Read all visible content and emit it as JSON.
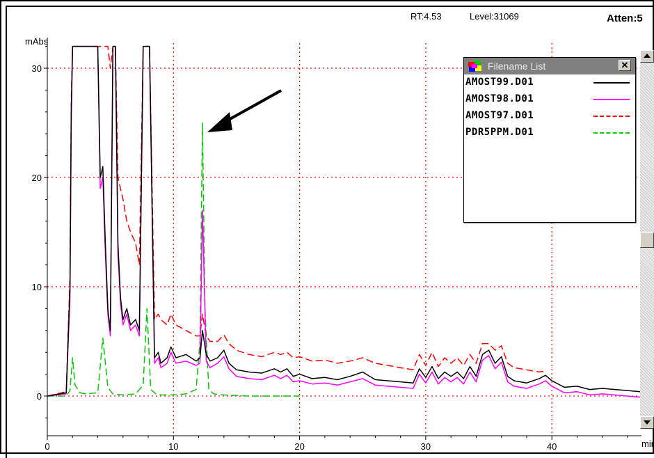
{
  "header": {
    "rt": "RT:4.53",
    "level": "Level:31069",
    "atten": "Atten:5"
  },
  "legend": {
    "title": "Filename List",
    "close_label": "✕",
    "items": [
      {
        "name": "AMOST99.D01",
        "color": "#000000",
        "dash": "solid"
      },
      {
        "name": "AMOST98.D01",
        "color": "#ff00ff",
        "dash": "solid"
      },
      {
        "name": "AMOST97.D01",
        "color": "#ff0000",
        "dash": "dashed"
      },
      {
        "name": "PDR5PPM.D01",
        "color": "#00cc00",
        "dash": "dashed"
      }
    ]
  },
  "chart_data": {
    "type": "line",
    "title": "",
    "xlabel": "min",
    "ylabel": "mAbs",
    "xlim": [
      0,
      47
    ],
    "ylim": [
      -3,
      32
    ],
    "x_ticks": [
      0,
      10,
      20,
      30,
      40
    ],
    "y_ticks": [
      0,
      10,
      20,
      30
    ],
    "grid": true,
    "grid_style": "red dotted",
    "legend_position": "top-right",
    "annotation": "arrow pointing to peak at x≈12.3",
    "series": [
      {
        "name": "AMOST99.D01",
        "color": "#000000",
        "dash": "solid",
        "x": [
          0,
          1.5,
          1.8,
          1.9,
          2.0,
          2.05,
          3.5,
          4.0,
          4.2,
          4.4,
          4.6,
          4.8,
          5.0,
          5.2,
          5.4,
          5.6,
          5.8,
          6.0,
          6.3,
          6.6,
          7.0,
          7.3,
          7.6,
          7.8,
          8.0,
          8.1,
          8.5,
          8.8,
          9.0,
          9.5,
          9.8,
          10.2,
          11.0,
          11.8,
          12.1,
          12.3,
          12.6,
          12.9,
          13.5,
          14.0,
          14.4,
          15.0,
          16.0,
          17.0,
          18.0,
          18.5,
          19.0,
          19.5,
          20.0,
          21.0,
          22.0,
          23.0,
          24.0,
          25.0,
          26.0,
          27.0,
          28.0,
          29.0,
          29.5,
          30.0,
          30.5,
          31.0,
          31.5,
          32.0,
          32.5,
          33.0,
          33.5,
          34.0,
          34.5,
          35.0,
          35.5,
          36.0,
          36.5,
          37.0,
          38.0,
          39.0,
          39.5,
          40.0,
          41.0,
          42.0,
          43.0,
          44.0,
          45.0,
          46.0,
          47.0
        ],
        "y": [
          0,
          0.3,
          10,
          26,
          32,
          32,
          32,
          32,
          20,
          21,
          14,
          8,
          6,
          32,
          32,
          14,
          9,
          7,
          8,
          6.5,
          7,
          6,
          32,
          32,
          32,
          32,
          3.5,
          4,
          3,
          3.5,
          4.5,
          3.5,
          3.8,
          3.2,
          3.5,
          6,
          3.8,
          3.2,
          3.5,
          4.2,
          3.0,
          2.4,
          2.2,
          2.1,
          2.5,
          2.2,
          2.5,
          1.8,
          2.0,
          1.6,
          1.7,
          1.5,
          1.8,
          2.2,
          1.5,
          1.4,
          1.3,
          1.2,
          2.5,
          1.7,
          2.7,
          1.6,
          2.2,
          1.8,
          2.2,
          1.6,
          2.7,
          1.8,
          3.8,
          4.2,
          3.0,
          3.6,
          1.8,
          1.4,
          1.2,
          1.6,
          1.9,
          1.4,
          0.8,
          0.9,
          0.6,
          0.7,
          0.6,
          0.5,
          0.4
        ]
      },
      {
        "name": "AMOST98.D01",
        "color": "#ff00ff",
        "dash": "solid",
        "x": [
          0,
          1.5,
          1.8,
          1.9,
          2.0,
          2.05,
          3.5,
          4.0,
          4.2,
          4.4,
          4.6,
          4.8,
          5.0,
          5.2,
          5.4,
          5.6,
          5.8,
          6.0,
          6.3,
          6.6,
          7.0,
          7.3,
          7.6,
          7.8,
          8.0,
          8.1,
          8.5,
          8.8,
          9.0,
          9.5,
          9.8,
          10.2,
          11.0,
          11.8,
          12.1,
          12.3,
          12.6,
          12.9,
          13.5,
          14.0,
          14.4,
          15.0,
          16.0,
          17.0,
          18.0,
          18.5,
          19.0,
          19.5,
          20.0,
          21.0,
          22.0,
          23.0,
          24.0,
          25.0,
          26.0,
          27.0,
          28.0,
          29.0,
          29.5,
          30.0,
          30.5,
          31.0,
          31.5,
          32.0,
          32.5,
          33.0,
          33.5,
          34.0,
          34.5,
          35.0,
          35.5,
          36.0,
          36.5,
          37.0,
          38.0,
          39.0,
          39.5,
          40.0,
          41.0,
          42.0,
          43.0,
          44.0,
          45.0,
          46.0,
          47.0
        ],
        "y": [
          0,
          0.2,
          9,
          25,
          32,
          32,
          32,
          32,
          19,
          20,
          13,
          7.5,
          5.5,
          32,
          32,
          13,
          8.5,
          6.5,
          7.5,
          6,
          6.5,
          5.5,
          32,
          32,
          32,
          32,
          3.0,
          3.5,
          2.6,
          3.0,
          4.0,
          3.0,
          3.2,
          2.8,
          3.0,
          17,
          3.2,
          2.6,
          3.0,
          3.6,
          2.5,
          1.8,
          1.6,
          1.5,
          1.9,
          1.6,
          1.9,
          1.3,
          1.4,
          1.1,
          1.2,
          1.0,
          1.3,
          1.6,
          1.0,
          0.9,
          0.8,
          0.7,
          2.0,
          1.2,
          2.2,
          1.1,
          1.7,
          1.3,
          1.7,
          1.1,
          2.2,
          1.3,
          3.3,
          3.7,
          2.5,
          3.1,
          1.3,
          0.9,
          0.7,
          1.1,
          1.4,
          0.9,
          0.3,
          0.4,
          0.1,
          0.2,
          0.1,
          0.0,
          -0.1
        ]
      },
      {
        "name": "AMOST97.D01",
        "color": "#ff0000",
        "dash": "dashed",
        "x": [
          0,
          1.5,
          1.8,
          1.9,
          2.0,
          2.05,
          3.5,
          4.0,
          4.4,
          4.8,
          5.0,
          5.2,
          5.4,
          5.6,
          6.0,
          6.3,
          6.6,
          7.0,
          7.3,
          7.6,
          7.8,
          8.0,
          8.1,
          8.5,
          8.8,
          9.0,
          9.5,
          9.8,
          10.2,
          11.0,
          11.8,
          12.1,
          12.3,
          12.6,
          12.9,
          13.5,
          14.0,
          14.4,
          15.0,
          16.0,
          17.0,
          18.0,
          18.5,
          19.0,
          19.5,
          20.0,
          21.0,
          22.0,
          23.0,
          24.0,
          25.0,
          26.0,
          27.0,
          28.0,
          29.0,
          29.5,
          30.0,
          30.5,
          31.0,
          31.5,
          32.0,
          32.5,
          33.0,
          33.5,
          34.0,
          34.5,
          35.0,
          35.5,
          36.0,
          36.5,
          37.0,
          38.0,
          39.0,
          39.5
        ],
        "y": [
          0,
          0.4,
          11,
          27,
          32,
          32,
          32,
          32,
          32,
          32,
          30,
          32,
          32,
          20,
          18,
          16,
          15,
          14,
          12,
          32,
          32,
          32,
          32,
          7,
          7.5,
          7,
          6.5,
          7.5,
          6.5,
          6.0,
          5.5,
          5.5,
          7.5,
          5.5,
          5.0,
          5.0,
          5.6,
          4.8,
          4.2,
          3.8,
          3.6,
          4.0,
          3.8,
          4.0,
          3.5,
          3.6,
          3.2,
          3.3,
          3.0,
          3.2,
          3.5,
          3.0,
          2.8,
          2.6,
          2.4,
          3.8,
          2.8,
          4.0,
          2.7,
          3.5,
          3.0,
          3.5,
          2.8,
          3.8,
          3.0,
          4.8,
          4.8,
          4.2,
          4.6,
          3.0,
          2.6,
          2.4,
          2.2,
          2.3
        ]
      },
      {
        "name": "PDR5PPM.D01",
        "color": "#00cc00",
        "dash": "dashed",
        "x": [
          0,
          1.5,
          1.8,
          2.0,
          2.2,
          2.6,
          3.0,
          4.0,
          4.4,
          4.8,
          5.2,
          6.0,
          7.0,
          7.6,
          7.9,
          8.2,
          8.6,
          9.0,
          10.0,
          11.0,
          11.8,
          12.1,
          12.3,
          12.5,
          12.8,
          13.2,
          14.0,
          15.0,
          16.0,
          18.0,
          20.0
        ],
        "y": [
          0,
          0,
          0.5,
          3.5,
          1.0,
          0.3,
          0.2,
          0.3,
          5.3,
          0.8,
          0.2,
          0.1,
          0.2,
          1.0,
          8.0,
          0.6,
          0.2,
          0.1,
          0.1,
          0.2,
          0.6,
          5.0,
          25,
          8.0,
          0.6,
          0.2,
          0.1,
          0.05,
          0,
          0,
          0
        ]
      }
    ]
  }
}
